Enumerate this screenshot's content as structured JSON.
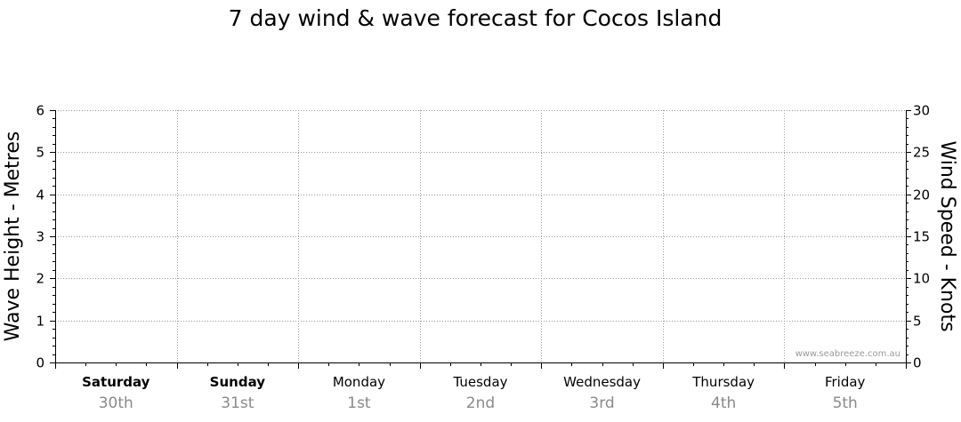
{
  "chart_data": {
    "type": "line",
    "title": "7 day wind & wave forecast for Cocos Island",
    "ylabel_left": "Wave Height - Metres",
    "ylabel_right": "Wind Speed - Knots",
    "ylim_left": [
      0,
      6
    ],
    "ylim_right": [
      0,
      30
    ],
    "yticks_left": [
      "0",
      "1",
      "2",
      "3",
      "4",
      "5",
      "6"
    ],
    "yticks_right": [
      "0",
      "5",
      "10",
      "15",
      "20",
      "25",
      "30"
    ],
    "days": [
      {
        "day": "Saturday",
        "date": "30th",
        "bold": true
      },
      {
        "day": "Sunday",
        "date": "31st",
        "bold": true
      },
      {
        "day": "Monday",
        "date": "1st",
        "bold": false
      },
      {
        "day": "Tuesday",
        "date": "2nd",
        "bold": false
      },
      {
        "day": "Wednesday",
        "date": "3rd",
        "bold": false
      },
      {
        "day": "Thursday",
        "date": "4th",
        "bold": false
      },
      {
        "day": "Friday",
        "date": "5th",
        "bold": false
      }
    ],
    "series": [],
    "grid": true,
    "watermark": "www.seabreeze.com.au"
  }
}
